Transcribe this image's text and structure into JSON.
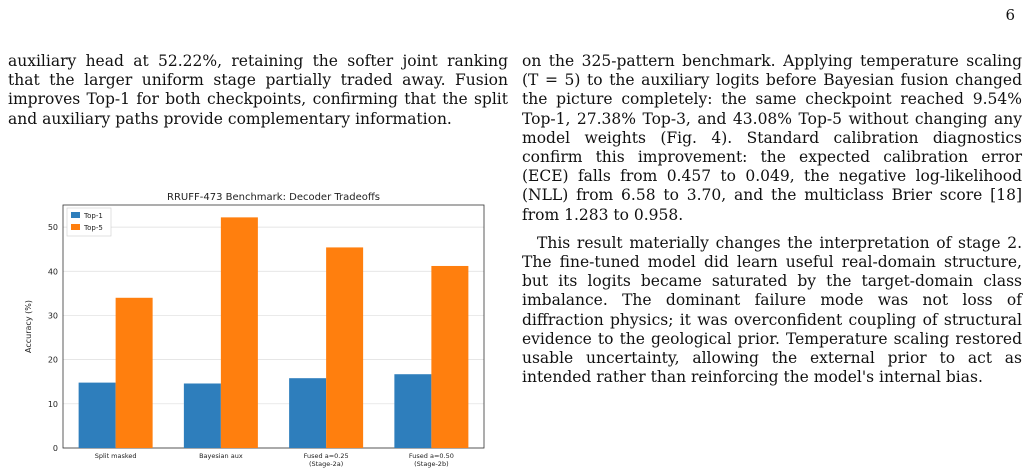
{
  "page_number": "6",
  "left_column": {
    "paragraph": "auxiliary head at 52.22%, retaining the softer joint ranking that the larger uniform stage partially traded away. Fusion improves Top-1 for both checkpoints, confirming that the split and auxiliary paths provide complementary information."
  },
  "right_column": {
    "paragraph_1": "on the 325-pattern benchmark. Applying temperature scaling (T = 5) to the auxiliary logits before Bayesian fusion changed the picture completely: the same checkpoint reached 9.54% Top-1, 27.38% Top-3, and 43.08% Top-5 without changing any model weights (Fig. 4). Standard calibration diagnostics confirm this improvement: the expected calibration error (ECE) falls from 0.457 to 0.049, the negative log-likelihood (NLL) from 6.58 to 3.70, and the multiclass Brier score [18] from 1.283 to 0.958.",
    "paragraph_2": "This result materially changes the interpretation of stage 2. The fine-tuned model did learn useful real-domain structure, but its logits became saturated by the target-domain class imbalance. The dominant failure mode was not loss of diffraction physics; it was overconfident coupling of structural evidence to the geological prior. Temperature scaling restored usable uncertainty, allowing the external prior to act as intended rather than reinforcing the model's internal bias."
  },
  "chart_data": {
    "type": "bar",
    "title": "RRUFF-473 Benchmark: Decoder Tradeoffs",
    "xlabel": "",
    "ylabel": "Accuracy (%)",
    "ylim": [
      0,
      55
    ],
    "yticks": [
      0,
      10,
      20,
      30,
      40,
      50
    ],
    "grid": true,
    "legend_position": "top-left",
    "categories": [
      [
        "Split masked"
      ],
      [
        "Bayesian aux"
      ],
      [
        "Fused a=0.25",
        "(Stage-2a)"
      ],
      [
        "Fused a=0.50",
        "(Stage-2b)"
      ]
    ],
    "series": [
      {
        "name": "Top-1",
        "color": "#2e7ebc",
        "values": [
          14.8,
          14.6,
          15.8,
          16.7
        ]
      },
      {
        "name": "Top-5",
        "color": "#ff7f0e",
        "values": [
          34.0,
          52.2,
          45.4,
          41.2
        ]
      }
    ]
  }
}
